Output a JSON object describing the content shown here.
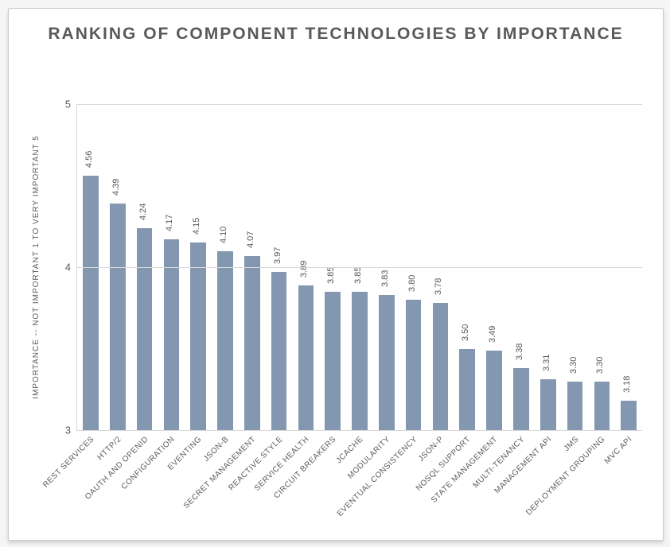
{
  "chart": {
    "type": "bar",
    "title": "RANKING OF COMPONENT TECHNOLOGIES BY IMPORTANCE",
    "ylabel": "IMPORTANCE -- NOT IMPORTANT 1 TO VERY IMPORTANT 5",
    "ylim": [
      3,
      5
    ],
    "yticks": [
      3,
      4,
      5
    ],
    "background_color": "#ffffff",
    "grid_color": "#d9d9d9",
    "bar_color": "#8497b0",
    "text_color": "#595959",
    "title_fontsize": 21,
    "label_fontsize": 10,
    "tick_fontsize": 13,
    "value_fontsize": 11,
    "bar_width": 0.58,
    "categories": [
      "REST SERVICES",
      "HTTP/2",
      "OAUTH AND OPENID",
      "CONFIGURATION",
      "EVENTING",
      "JSON-B",
      "SECRET MANAGEMENT",
      "REACTIVE STYLE",
      "SERVICE HEALTH",
      "CIRCUIT BREAKERS",
      "JCACHE",
      "MODULARITY",
      "EVENTUAL CONSISTENCY",
      "JSON-P",
      "NOSQL SUPPORT",
      "STATE MANAGEMENT",
      "MULTI-TENANCY",
      "MANAGEMENT API",
      "JMS",
      "DEPLOYMENT GROUPING",
      "MVC API"
    ],
    "values": [
      4.56,
      4.39,
      4.24,
      4.17,
      4.15,
      4.1,
      4.07,
      3.97,
      3.89,
      3.85,
      3.85,
      3.83,
      3.8,
      3.78,
      3.5,
      3.49,
      3.38,
      3.31,
      3.3,
      3.3,
      3.18
    ]
  }
}
